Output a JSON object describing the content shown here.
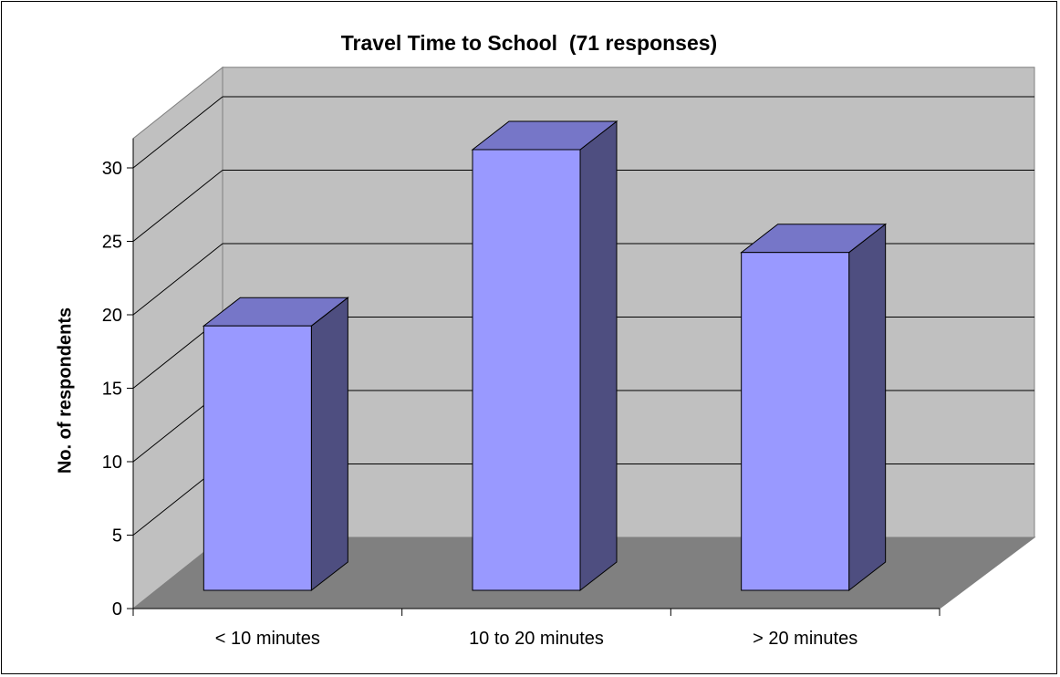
{
  "chart_data": {
    "type": "bar",
    "title": "Travel Time to School  (71 responses)",
    "xlabel": "",
    "ylabel": "No. of respondents",
    "categories": [
      "< 10 minutes",
      "10 to 20 minutes",
      "> 20 minutes"
    ],
    "values": [
      18,
      30,
      23
    ],
    "ylim": [
      0,
      30
    ],
    "yticks": [
      0,
      5,
      10,
      15,
      20,
      25,
      30
    ],
    "grid": true,
    "legend": "none",
    "three_d": true,
    "colors": {
      "bar_front": "#9999ff",
      "bar_top": "#7676c8",
      "bar_side": "#4e4e80",
      "back_wall": "#c0c0c0",
      "side_wall": "#c0c0c0",
      "floor": "#808080"
    }
  }
}
